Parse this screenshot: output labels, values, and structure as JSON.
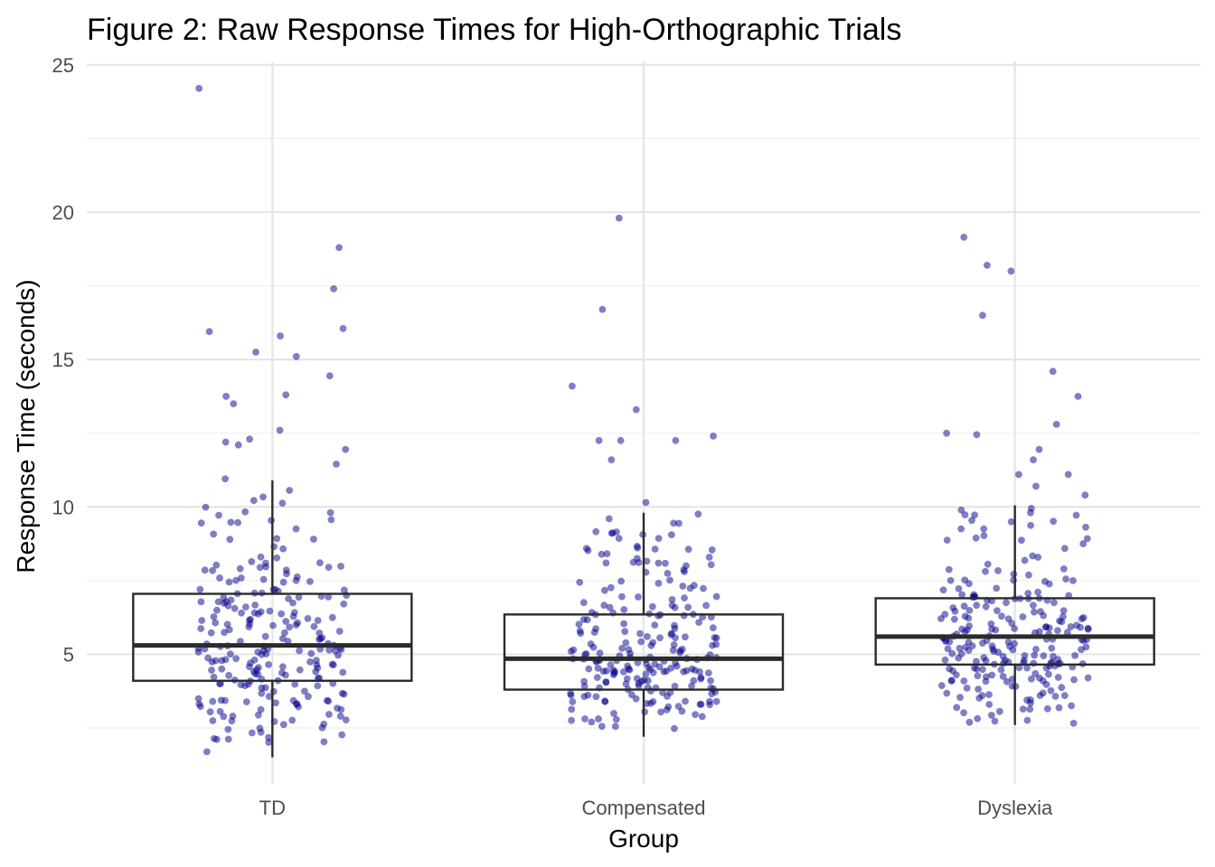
{
  "chart_data": {
    "type": "box",
    "title": "Figure 2: Raw Response Times for High-Orthographic Trials",
    "xlabel": "Group",
    "ylabel": "Response Time (seconds)",
    "categories": [
      "TD",
      "Compensated",
      "Dyslexia"
    ],
    "ylim": [
      0.6,
      25.3
    ],
    "yticks": [
      5,
      10,
      15,
      20,
      25
    ],
    "grid": true,
    "point_color": "#00008B",
    "point_opacity": 0.5,
    "boxes": [
      {
        "category": "TD",
        "whisker_low": 1.5,
        "q1": 4.1,
        "median": 5.3,
        "q3": 7.05,
        "whisker_high": 10.9
      },
      {
        "category": "Compensated",
        "whisker_low": 2.2,
        "q1": 3.8,
        "median": 4.85,
        "q3": 6.35,
        "whisker_high": 9.8
      },
      {
        "category": "Dyslexia",
        "whisker_low": 2.6,
        "q1": 4.65,
        "median": 5.6,
        "q3": 6.9,
        "whisker_high": 10.05
      }
    ],
    "outliers": [
      {
        "category": "TD",
        "values": [
          24.2,
          18.8,
          17.4,
          16.05,
          15.95,
          15.8,
          15.25,
          15.1,
          14.45,
          13.8,
          13.75,
          13.5,
          12.6,
          12.3,
          12.2,
          12.1,
          11.95,
          11.45,
          10.95
        ]
      },
      {
        "category": "Compensated",
        "values": [
          19.8,
          16.7,
          14.1,
          13.3,
          12.4,
          12.25,
          12.25,
          12.25,
          11.6,
          10.15
        ]
      },
      {
        "category": "Dyslexia",
        "values": [
          19.15,
          18.2,
          18.0,
          16.5,
          14.6,
          13.75,
          12.8,
          12.5,
          12.45,
          11.95,
          11.6,
          11.1,
          11.1,
          10.7,
          10.4
        ]
      }
    ]
  }
}
